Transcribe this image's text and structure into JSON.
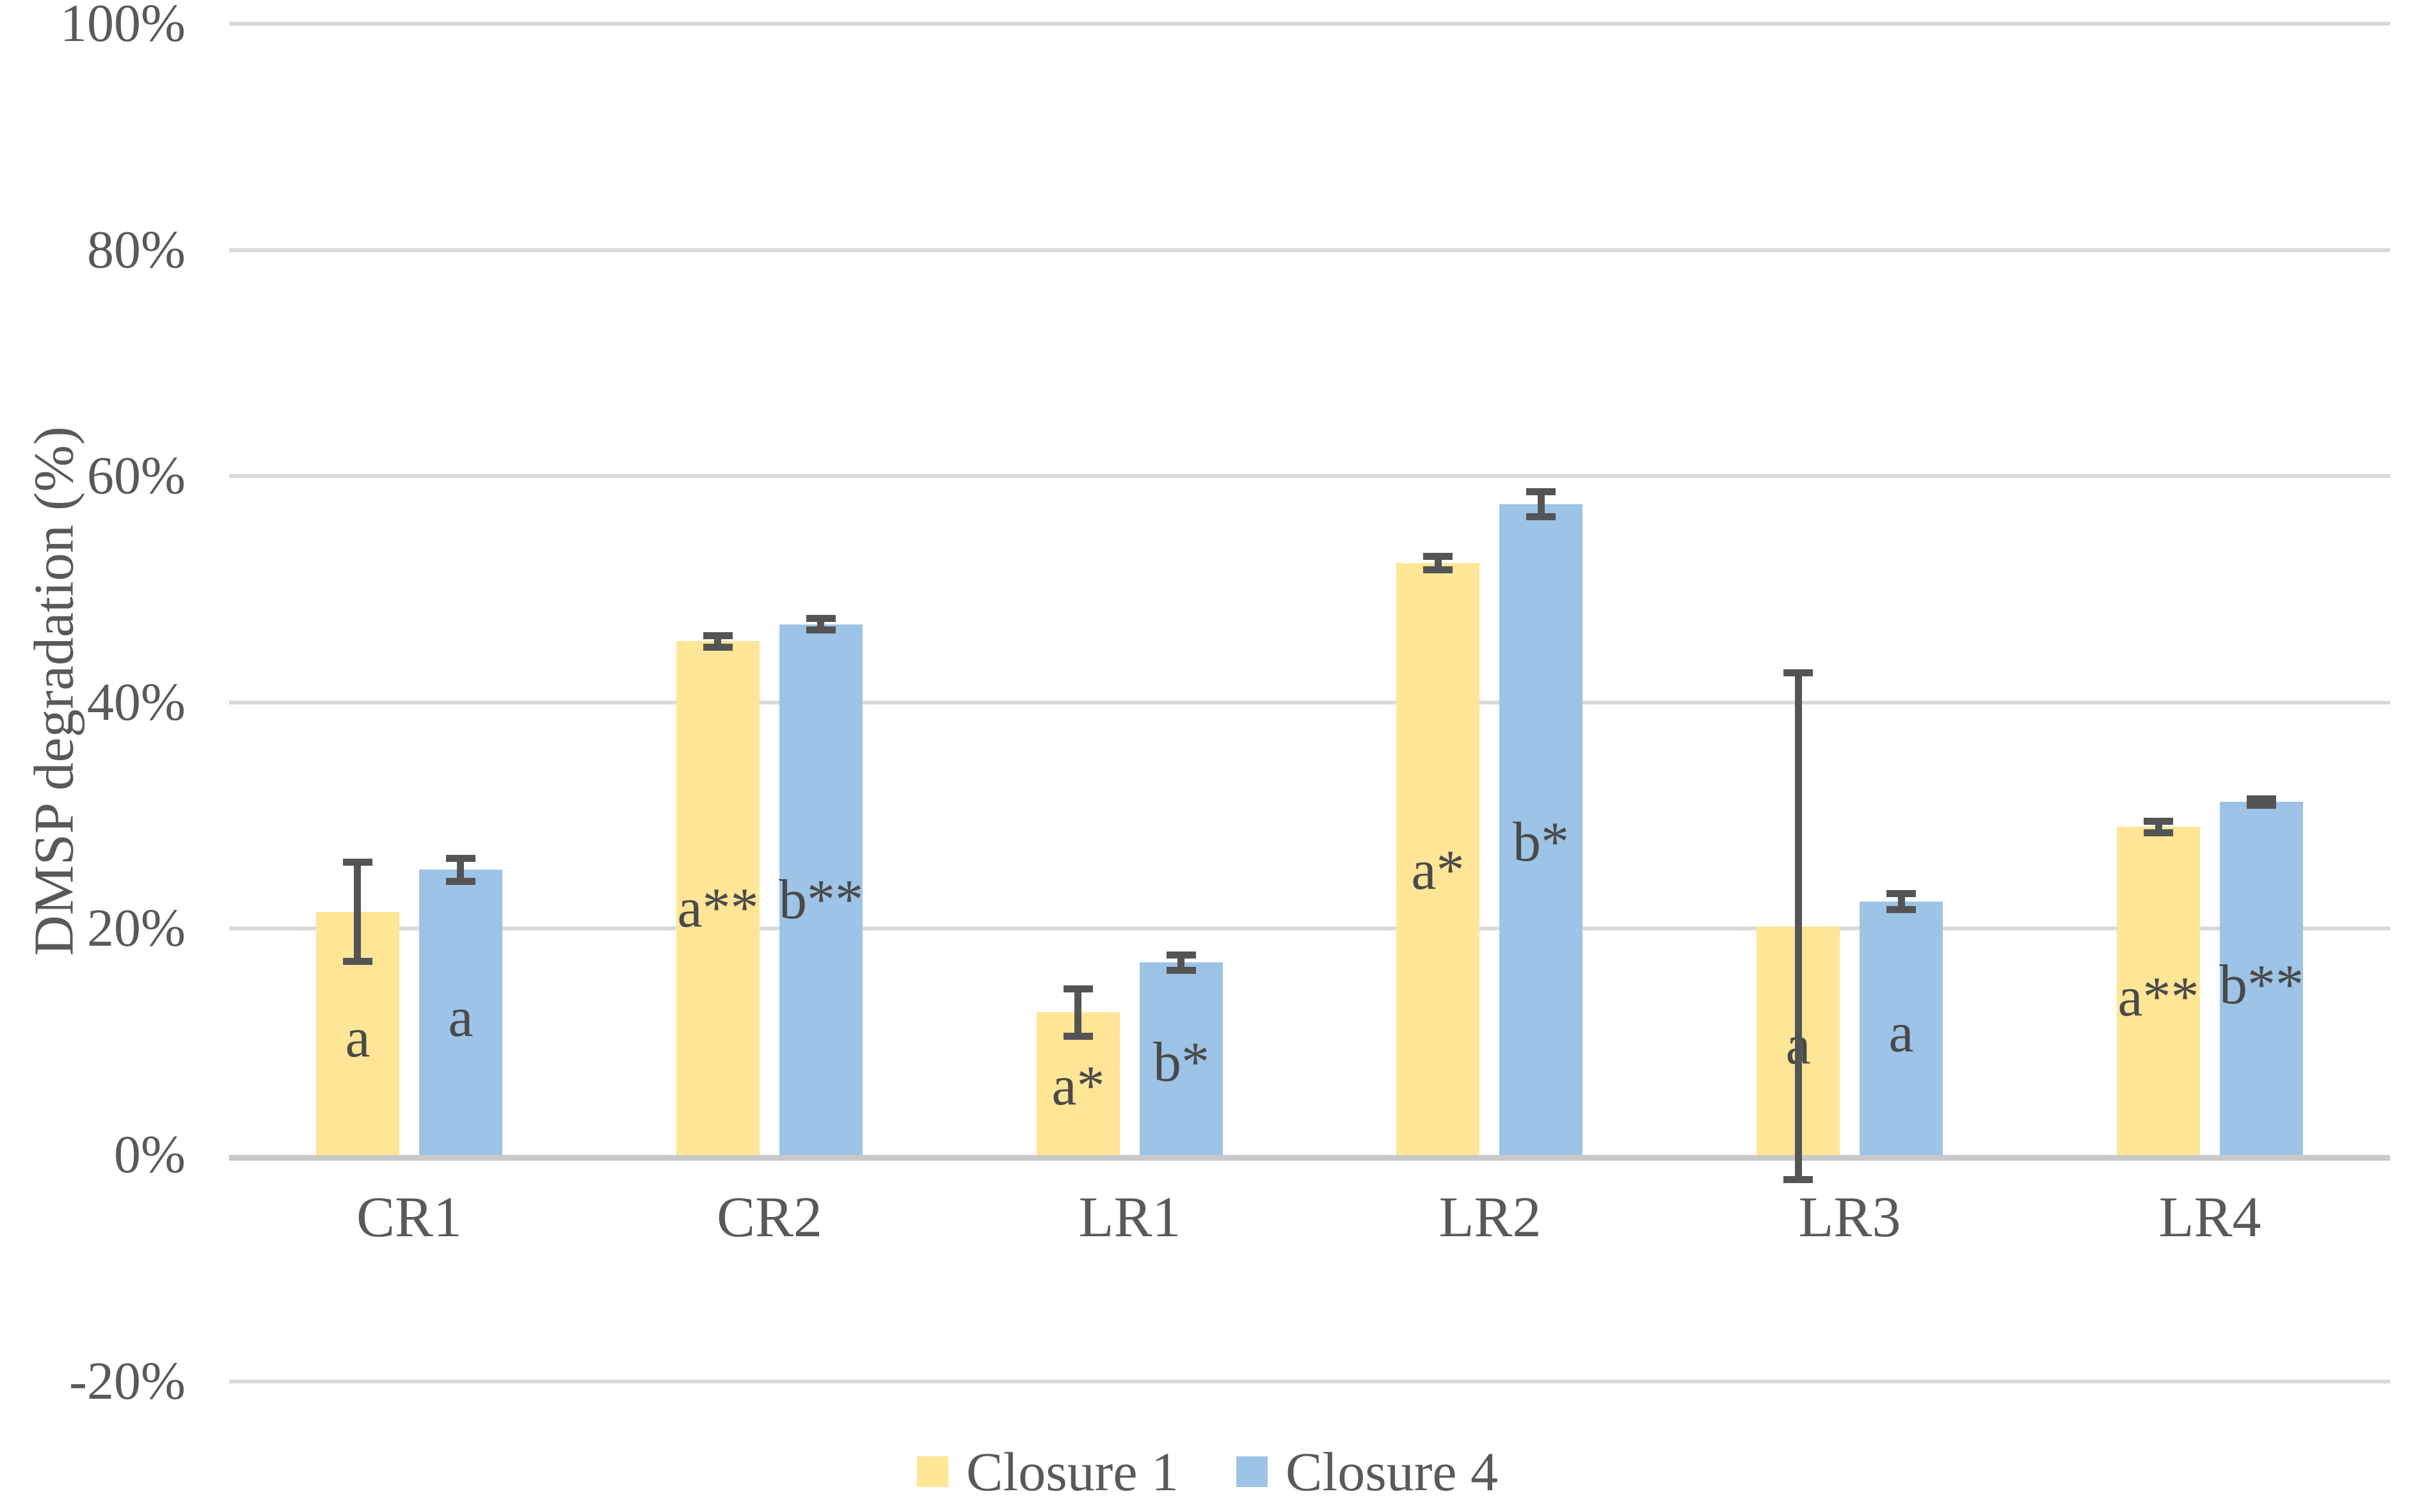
{
  "figure": {
    "background": "#FFFFFF"
  },
  "colors": {
    "text": "#595959",
    "bar_label_text": "#4A4A4A",
    "gridline": "#D9D9D9",
    "axis_line": "#C9C9C9",
    "error_bar": "#545454"
  },
  "chart_data": {
    "type": "bar",
    "title": "",
    "xlabel": "",
    "ylabel": "DMSP degradation (%)",
    "categories": [
      "CR1",
      "CR2",
      "LR1",
      "LR2",
      "LR3",
      "LR4"
    ],
    "y_axis": {
      "min": -20,
      "max": 100,
      "tick_step": 20,
      "tick_values": [
        100,
        80,
        60,
        40,
        20,
        0,
        -20
      ],
      "tick_labels": [
        "100%",
        "80%",
        "60%",
        "40%",
        "20%",
        "0%",
        "-20%"
      ],
      "format": "percent"
    },
    "grid": true,
    "legend_position": "bottom",
    "series": [
      {
        "name": "Closure 1",
        "color": "#FFE596",
        "values": [
          21.5,
          45.4,
          12.6,
          52.3,
          20.2,
          29.0
        ],
        "errors": [
          4.4,
          0.5,
          2.1,
          0.6,
          22.4,
          0.5
        ],
        "bar_labels": [
          "a",
          "a**",
          "a*",
          "a*",
          "a",
          "a**"
        ]
      },
      {
        "name": "Closure 4",
        "color": "#9DC3E6",
        "values": [
          25.2,
          46.9,
          17.0,
          57.5,
          22.4,
          31.2
        ],
        "errors": [
          1.0,
          0.5,
          0.7,
          1.1,
          0.7,
          0.3
        ],
        "bar_labels": [
          "a",
          "b**",
          "b*",
          "b*",
          "a",
          "b**"
        ]
      }
    ]
  }
}
